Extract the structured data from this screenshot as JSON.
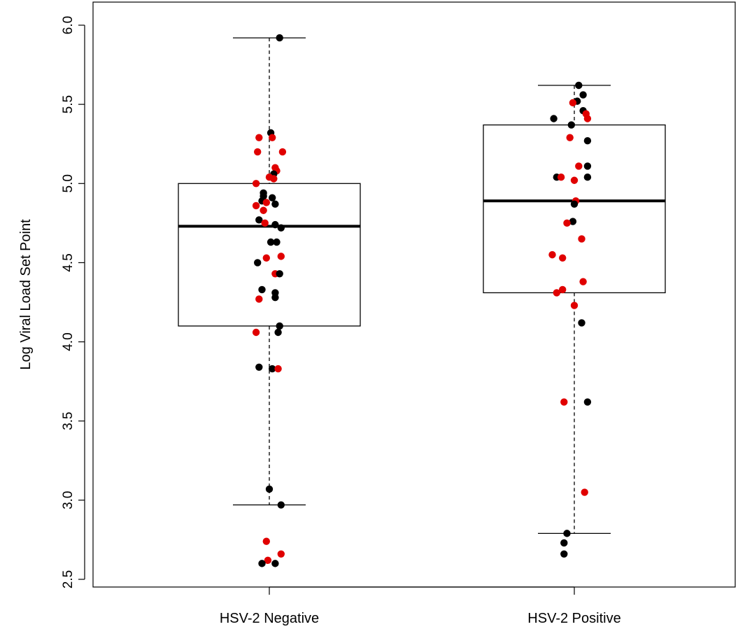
{
  "chart_data": {
    "type": "box",
    "title": "",
    "xlabel": "",
    "ylabel": "Log Viral Load Set Point",
    "ylim": [
      2.45,
      6.08
    ],
    "yticks": [
      "2.5",
      "3.0",
      "3.5",
      "4.0",
      "4.5",
      "5.0",
      "5.5",
      "6.0"
    ],
    "yticks_values": [
      2.5,
      3.0,
      3.5,
      4.0,
      4.5,
      5.0,
      5.5,
      6.0
    ],
    "grid": false,
    "legend": "none",
    "colors": {
      "black": "#000000",
      "red": "#e00000"
    },
    "categories": [
      "HSV-2 Negative",
      "HSV-2 Positive"
    ],
    "boxes": [
      {
        "category": "HSV-2 Negative",
        "whisker_low": 2.97,
        "q1": 4.1,
        "median": 4.73,
        "q3": 5.0,
        "whisker_high": 5.92
      },
      {
        "category": "HSV-2 Positive",
        "whisker_low": 2.79,
        "q1": 4.31,
        "median": 4.89,
        "q3": 5.37,
        "whisker_high": 5.62
      }
    ],
    "points": [
      [
        {
          "x": 0.07,
          "y": 5.92,
          "c": "black"
        },
        {
          "x": 0.01,
          "y": 5.32,
          "c": "black"
        },
        {
          "x": -0.07,
          "y": 5.29,
          "c": "red"
        },
        {
          "x": 0.02,
          "y": 5.29,
          "c": "red"
        },
        {
          "x": -0.08,
          "y": 5.2,
          "c": "red"
        },
        {
          "x": 0.09,
          "y": 5.2,
          "c": "red"
        },
        {
          "x": 0.04,
          "y": 5.1,
          "c": "red"
        },
        {
          "x": 0.05,
          "y": 5.08,
          "c": "red"
        },
        {
          "x": 0.03,
          "y": 5.06,
          "c": "black"
        },
        {
          "x": 0.0,
          "y": 5.04,
          "c": "red"
        },
        {
          "x": 0.03,
          "y": 5.03,
          "c": "red"
        },
        {
          "x": -0.09,
          "y": 5.0,
          "c": "red"
        },
        {
          "x": -0.04,
          "y": 4.94,
          "c": "black"
        },
        {
          "x": -0.04,
          "y": 4.92,
          "c": "black"
        },
        {
          "x": 0.02,
          "y": 4.91,
          "c": "black"
        },
        {
          "x": -0.05,
          "y": 4.89,
          "c": "black"
        },
        {
          "x": -0.02,
          "y": 4.88,
          "c": "red"
        },
        {
          "x": 0.04,
          "y": 4.87,
          "c": "black"
        },
        {
          "x": -0.09,
          "y": 4.86,
          "c": "red"
        },
        {
          "x": -0.04,
          "y": 4.83,
          "c": "red"
        },
        {
          "x": -0.07,
          "y": 4.77,
          "c": "black"
        },
        {
          "x": -0.03,
          "y": 4.75,
          "c": "red"
        },
        {
          "x": 0.04,
          "y": 4.74,
          "c": "black"
        },
        {
          "x": 0.08,
          "y": 4.72,
          "c": "black"
        },
        {
          "x": 0.01,
          "y": 4.63,
          "c": "black"
        },
        {
          "x": 0.05,
          "y": 4.63,
          "c": "black"
        },
        {
          "x": 0.08,
          "y": 4.54,
          "c": "red"
        },
        {
          "x": -0.02,
          "y": 4.53,
          "c": "red"
        },
        {
          "x": -0.08,
          "y": 4.5,
          "c": "black"
        },
        {
          "x": 0.04,
          "y": 4.43,
          "c": "red"
        },
        {
          "x": 0.07,
          "y": 4.43,
          "c": "black"
        },
        {
          "x": -0.05,
          "y": 4.33,
          "c": "black"
        },
        {
          "x": 0.04,
          "y": 4.31,
          "c": "black"
        },
        {
          "x": 0.04,
          "y": 4.28,
          "c": "black"
        },
        {
          "x": -0.07,
          "y": 4.27,
          "c": "red"
        },
        {
          "x": 0.07,
          "y": 4.1,
          "c": "black"
        },
        {
          "x": -0.09,
          "y": 4.06,
          "c": "red"
        },
        {
          "x": 0.06,
          "y": 4.06,
          "c": "black"
        },
        {
          "x": -0.07,
          "y": 3.84,
          "c": "black"
        },
        {
          "x": 0.02,
          "y": 3.83,
          "c": "black"
        },
        {
          "x": 0.06,
          "y": 3.83,
          "c": "red"
        },
        {
          "x": 0.0,
          "y": 3.07,
          "c": "black"
        },
        {
          "x": 0.08,
          "y": 2.97,
          "c": "black"
        },
        {
          "x": -0.02,
          "y": 2.74,
          "c": "red"
        },
        {
          "x": 0.08,
          "y": 2.66,
          "c": "red"
        },
        {
          "x": -0.01,
          "y": 2.62,
          "c": "red"
        },
        {
          "x": -0.05,
          "y": 2.6,
          "c": "black"
        },
        {
          "x": 0.04,
          "y": 2.6,
          "c": "black"
        }
      ],
      [
        {
          "x": 0.03,
          "y": 5.62,
          "c": "black"
        },
        {
          "x": 0.06,
          "y": 5.56,
          "c": "black"
        },
        {
          "x": 0.02,
          "y": 5.52,
          "c": "black"
        },
        {
          "x": -0.01,
          "y": 5.51,
          "c": "red"
        },
        {
          "x": 0.06,
          "y": 5.46,
          "c": "black"
        },
        {
          "x": 0.08,
          "y": 5.44,
          "c": "red"
        },
        {
          "x": 0.09,
          "y": 5.41,
          "c": "red"
        },
        {
          "x": -0.14,
          "y": 5.41,
          "c": "black"
        },
        {
          "x": -0.02,
          "y": 5.37,
          "c": "black"
        },
        {
          "x": -0.03,
          "y": 5.29,
          "c": "red"
        },
        {
          "x": 0.09,
          "y": 5.27,
          "c": "black"
        },
        {
          "x": 0.03,
          "y": 5.11,
          "c": "red"
        },
        {
          "x": 0.09,
          "y": 5.11,
          "c": "black"
        },
        {
          "x": -0.12,
          "y": 5.04,
          "c": "black"
        },
        {
          "x": -0.09,
          "y": 5.04,
          "c": "red"
        },
        {
          "x": 0.09,
          "y": 5.04,
          "c": "black"
        },
        {
          "x": 0.0,
          "y": 5.02,
          "c": "red"
        },
        {
          "x": 0.01,
          "y": 4.89,
          "c": "red"
        },
        {
          "x": 0.0,
          "y": 4.87,
          "c": "black"
        },
        {
          "x": -0.01,
          "y": 4.76,
          "c": "black"
        },
        {
          "x": -0.05,
          "y": 4.75,
          "c": "red"
        },
        {
          "x": 0.05,
          "y": 4.65,
          "c": "red"
        },
        {
          "x": -0.15,
          "y": 4.55,
          "c": "red"
        },
        {
          "x": -0.08,
          "y": 4.53,
          "c": "red"
        },
        {
          "x": 0.06,
          "y": 4.38,
          "c": "red"
        },
        {
          "x": -0.08,
          "y": 4.33,
          "c": "red"
        },
        {
          "x": -0.12,
          "y": 4.31,
          "c": "red"
        },
        {
          "x": 0.0,
          "y": 4.23,
          "c": "red"
        },
        {
          "x": 0.05,
          "y": 4.12,
          "c": "black"
        },
        {
          "x": -0.07,
          "y": 3.62,
          "c": "red"
        },
        {
          "x": 0.09,
          "y": 3.62,
          "c": "black"
        },
        {
          "x": 0.07,
          "y": 3.05,
          "c": "red"
        },
        {
          "x": -0.05,
          "y": 2.79,
          "c": "black"
        },
        {
          "x": -0.07,
          "y": 2.73,
          "c": "black"
        },
        {
          "x": -0.07,
          "y": 2.66,
          "c": "black"
        }
      ]
    ]
  }
}
